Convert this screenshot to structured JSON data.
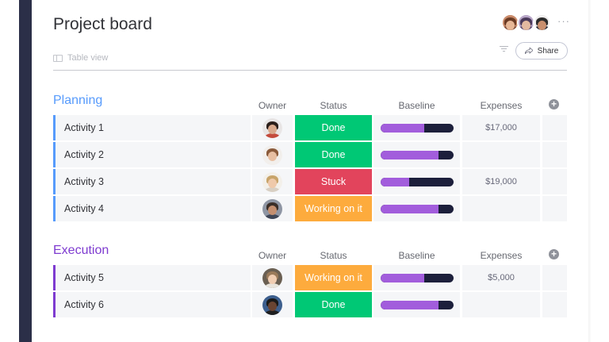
{
  "board": {
    "title": "Project board",
    "view_label": "Table view",
    "share_label": "Share",
    "more_label": "···"
  },
  "header_avatars": [
    {
      "name": "avatar-1",
      "bg": "#c98a6a",
      "hair": "#6b3b24",
      "face": "#e7b796",
      "shirt": "#7a4a38"
    },
    {
      "name": "avatar-2",
      "bg": "#b9a7c9",
      "hair": "#4b3a5a",
      "face": "#e3b9a0",
      "shirt": "#5d4a6e"
    },
    {
      "name": "avatar-3",
      "bg": "#f0eeee",
      "hair": "#2b2b2b",
      "face": "#c98f6e",
      "shirt": "#2a2d3a"
    }
  ],
  "columns": {
    "owner": "Owner",
    "status": "Status",
    "baseline": "Baseline",
    "expenses": "Expenses"
  },
  "status_colors": {
    "Done": "#00c875",
    "Stuck": "#e2445c",
    "Working on it": "#fdab3d"
  },
  "groups": [
    {
      "title": "Planning",
      "color": "#579bfc",
      "rows": [
        {
          "name": "Activity 1",
          "status": "Done",
          "baseline_progress": 0.6,
          "expenses": "$17,000",
          "owner": {
            "bg": "#e9e6e6",
            "hair": "#2a1e1a",
            "face": "#d9a98c",
            "shirt": "#c44b3c"
          }
        },
        {
          "name": "Activity 2",
          "status": "Done",
          "baseline_progress": 0.8,
          "expenses": "",
          "owner": {
            "bg": "#f2efec",
            "hair": "#8a5a3a",
            "face": "#e8bfa2",
            "shirt": "#f2efec"
          }
        },
        {
          "name": "Activity 3",
          "status": "Stuck",
          "baseline_progress": 0.4,
          "expenses": "$19,000",
          "owner": {
            "bg": "#f3f0ea",
            "hair": "#c8a46a",
            "face": "#efc9aa",
            "shirt": "#d8cfc3"
          }
        },
        {
          "name": "Activity 4",
          "status": "Working on it",
          "baseline_progress": 0.8,
          "expenses": "",
          "owner": {
            "bg": "#8f96a4",
            "hair": "#3a2e28",
            "face": "#c48f70",
            "shirt": "#3f4657"
          }
        }
      ]
    },
    {
      "title": "Execution",
      "color": "#7e3bd0",
      "rows": [
        {
          "name": "Activity 5",
          "status": "Working on it",
          "baseline_progress": 0.6,
          "expenses": "$5,000",
          "owner": {
            "bg": "#6a5f52",
            "hair": "#9a7a5a",
            "face": "#f0cdb2",
            "shirt": "#e9e4dc"
          }
        },
        {
          "name": "Activity 6",
          "status": "Done",
          "baseline_progress": 0.8,
          "expenses": "",
          "owner": {
            "bg": "#3d5f8e",
            "hair": "#1a1a1a",
            "face": "#6a4432",
            "shirt": "#1f1f1f"
          }
        }
      ]
    }
  ]
}
